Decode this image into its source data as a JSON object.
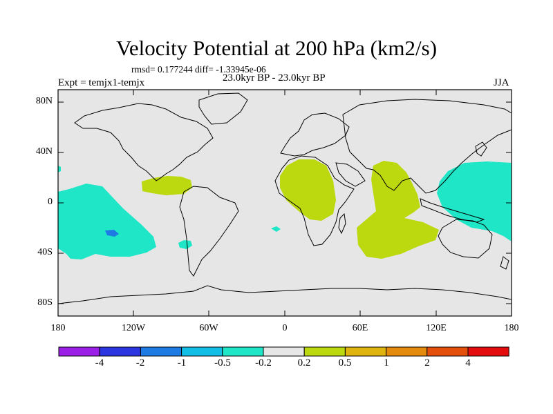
{
  "title": "Velocity Potential at 200 hPa (km2/s)",
  "stats": "rmsd= 0.177244 diff= -1.33945e-06",
  "experiment": "Expt = temjx1-temjx",
  "period": "23.0kyr BP - 23.0kyr BP",
  "season": "JJA",
  "map": {
    "lat_ticks": [
      "80N",
      "40N",
      "0",
      "40S",
      "80S"
    ],
    "lon_ticks": [
      "180",
      "120W",
      "60W",
      "0",
      "60E",
      "120E",
      "180"
    ],
    "background_color": "#e6e6e6"
  },
  "colorbar": {
    "colors": [
      "#9b1fe6",
      "#2b35e0",
      "#1e7be4",
      "#12bde6",
      "#1ee6c6",
      "#e6e6e6",
      "#bcd80f",
      "#e0b40e",
      "#e48a0c",
      "#e4500b",
      "#e30d0d"
    ],
    "labels": [
      "-4",
      "-2",
      "-1",
      "-0.5",
      "-0.2",
      "0.2",
      "0.5",
      "1",
      "2",
      "4"
    ]
  },
  "regions": [
    {
      "name": "south-pacific-negative",
      "sign": "negative",
      "color": "#1ee6c6"
    },
    {
      "name": "west-pacific-negative",
      "sign": "negative",
      "color": "#1ee6c6"
    },
    {
      "name": "africa-positive",
      "sign": "positive",
      "color": "#bcd80f"
    },
    {
      "name": "indian-ocean-positive",
      "sign": "positive",
      "color": "#bcd80f"
    },
    {
      "name": "central-america-positive",
      "sign": "positive",
      "color": "#bcd80f"
    }
  ]
}
